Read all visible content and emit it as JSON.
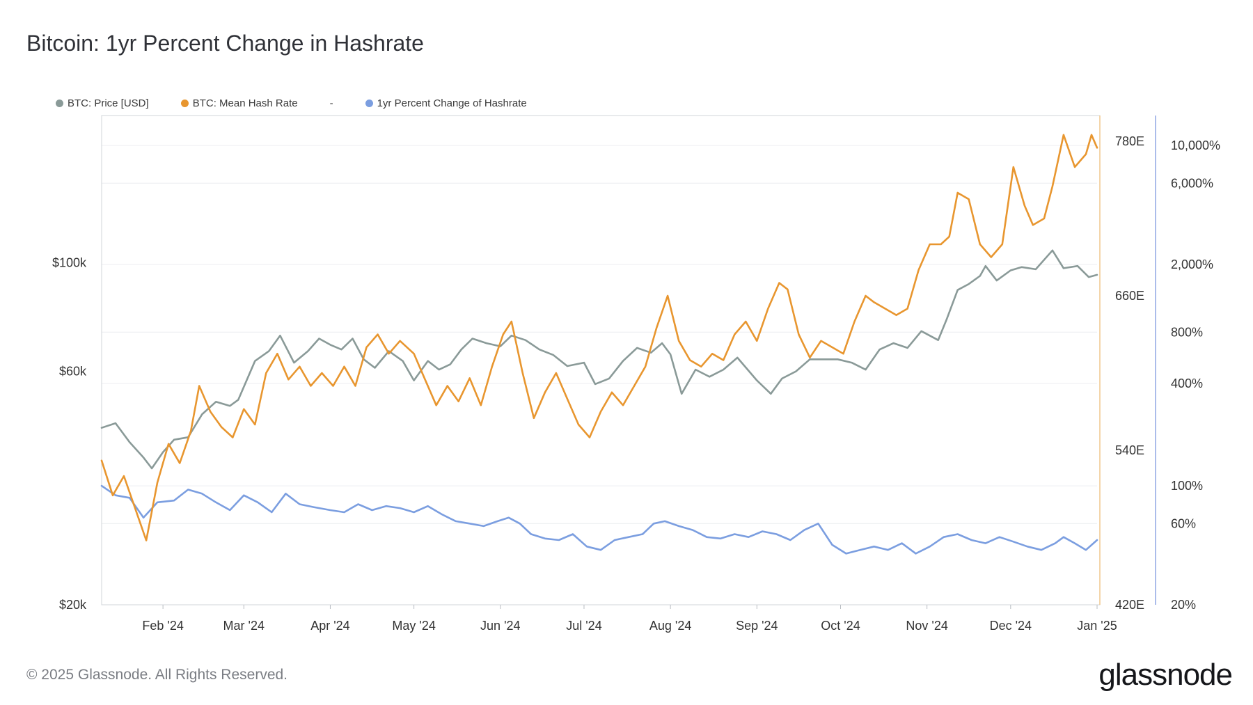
{
  "title": "Bitcoin: 1yr Percent Change in Hashrate",
  "footer": {
    "copyright": "© 2025 Glassnode. All Rights Reserved.",
    "brand": "glassnode"
  },
  "chart_data": {
    "type": "line",
    "title": "Bitcoin: 1yr Percent Change in Hashrate",
    "legend": {
      "placement": "top-left",
      "separator": "-"
    },
    "x_ticks": [
      {
        "date": "2024-02-01",
        "label": "Feb '24"
      },
      {
        "date": "2024-03-01",
        "label": "Mar '24"
      },
      {
        "date": "2024-04-01",
        "label": "Apr '24"
      },
      {
        "date": "2024-05-01",
        "label": "May '24"
      },
      {
        "date": "2024-06-01",
        "label": "Jun '24"
      },
      {
        "date": "2024-07-01",
        "label": "Jul '24"
      },
      {
        "date": "2024-08-01",
        "label": "Aug '24"
      },
      {
        "date": "2024-09-01",
        "label": "Sep '24"
      },
      {
        "date": "2024-10-01",
        "label": "Oct '24"
      },
      {
        "date": "2024-11-01",
        "label": "Nov '24"
      },
      {
        "date": "2024-12-01",
        "label": "Dec '24"
      },
      {
        "date": "2025-01-01",
        "label": "Jan '25"
      }
    ],
    "x_range": [
      "2024-01-10",
      "2025-01-01"
    ],
    "axes": {
      "price": {
        "scale": "log",
        "range": [
          20000,
          200000
        ],
        "ticks": [
          {
            "v": 20000,
            "label": "$20k"
          },
          {
            "v": 60000,
            "label": "$60k"
          },
          {
            "v": 100000,
            "label": "$100k"
          }
        ]
      },
      "hashrate": {
        "scale": "linear",
        "range": [
          420,
          800
        ],
        "ticks": [
          {
            "v": 420,
            "label": "420E"
          },
          {
            "v": 540,
            "label": "540E"
          },
          {
            "v": 660,
            "label": "660E"
          },
          {
            "v": 780,
            "label": "780E"
          }
        ]
      },
      "pct_change": {
        "scale": "log",
        "range": [
          20,
          15000
        ],
        "ticks": [
          {
            "v": 20,
            "label": "20%"
          },
          {
            "v": 60,
            "label": "60%"
          },
          {
            "v": 100,
            "label": "100%"
          },
          {
            "v": 400,
            "label": "400%"
          },
          {
            "v": 800,
            "label": "800%"
          },
          {
            "v": 2000,
            "label": "2,000%"
          },
          {
            "v": 6000,
            "label": "6,000%"
          },
          {
            "v": 10000,
            "label": "10,000%"
          }
        ]
      }
    },
    "grid": true,
    "series": [
      {
        "name": "BTC: Price [USD]",
        "color": "#8a9a98",
        "axis": "price",
        "points": [
          [
            "2024-01-10",
            46000
          ],
          [
            "2024-01-15",
            47000
          ],
          [
            "2024-01-20",
            43000
          ],
          [
            "2024-01-25",
            40000
          ],
          [
            "2024-01-28",
            38000
          ],
          [
            "2024-02-01",
            41000
          ],
          [
            "2024-02-05",
            43500
          ],
          [
            "2024-02-10",
            44000
          ],
          [
            "2024-02-15",
            49000
          ],
          [
            "2024-02-20",
            52000
          ],
          [
            "2024-02-25",
            51000
          ],
          [
            "2024-02-28",
            52500
          ],
          [
            "2024-03-05",
            63000
          ],
          [
            "2024-03-10",
            66000
          ],
          [
            "2024-03-14",
            71000
          ],
          [
            "2024-03-19",
            62500
          ],
          [
            "2024-03-24",
            66000
          ],
          [
            "2024-03-28",
            70000
          ],
          [
            "2024-04-01",
            68000
          ],
          [
            "2024-04-05",
            66500
          ],
          [
            "2024-04-09",
            70000
          ],
          [
            "2024-04-13",
            63500
          ],
          [
            "2024-04-17",
            61000
          ],
          [
            "2024-04-22",
            66000
          ],
          [
            "2024-04-27",
            63000
          ],
          [
            "2024-05-01",
            57500
          ],
          [
            "2024-05-06",
            63000
          ],
          [
            "2024-05-10",
            60500
          ],
          [
            "2024-05-14",
            62000
          ],
          [
            "2024-05-18",
            66500
          ],
          [
            "2024-05-22",
            70000
          ],
          [
            "2024-05-27",
            68500
          ],
          [
            "2024-06-01",
            67500
          ],
          [
            "2024-06-05",
            71000
          ],
          [
            "2024-06-10",
            69500
          ],
          [
            "2024-06-15",
            66500
          ],
          [
            "2024-06-20",
            64800
          ],
          [
            "2024-06-25",
            61500
          ],
          [
            "2024-07-01",
            62500
          ],
          [
            "2024-07-05",
            56500
          ],
          [
            "2024-07-10",
            58000
          ],
          [
            "2024-07-15",
            63000
          ],
          [
            "2024-07-20",
            67000
          ],
          [
            "2024-07-25",
            65500
          ],
          [
            "2024-07-29",
            68500
          ],
          [
            "2024-08-01",
            65000
          ],
          [
            "2024-08-05",
            54000
          ],
          [
            "2024-08-10",
            60500
          ],
          [
            "2024-08-15",
            58500
          ],
          [
            "2024-08-20",
            60500
          ],
          [
            "2024-08-25",
            64000
          ],
          [
            "2024-09-01",
            57500
          ],
          [
            "2024-09-06",
            54000
          ],
          [
            "2024-09-10",
            58000
          ],
          [
            "2024-09-15",
            60000
          ],
          [
            "2024-09-20",
            63500
          ],
          [
            "2024-09-25",
            63500
          ],
          [
            "2024-09-30",
            63500
          ],
          [
            "2024-10-05",
            62500
          ],
          [
            "2024-10-10",
            60500
          ],
          [
            "2024-10-15",
            66500
          ],
          [
            "2024-10-20",
            68500
          ],
          [
            "2024-10-25",
            67000
          ],
          [
            "2024-10-30",
            72500
          ],
          [
            "2024-11-05",
            69500
          ],
          [
            "2024-11-08",
            76500
          ],
          [
            "2024-11-12",
            88000
          ],
          [
            "2024-11-16",
            90500
          ],
          [
            "2024-11-20",
            94000
          ],
          [
            "2024-11-22",
            98500
          ],
          [
            "2024-11-26",
            92000
          ],
          [
            "2024-12-01",
            96500
          ],
          [
            "2024-12-05",
            98000
          ],
          [
            "2024-12-10",
            97000
          ],
          [
            "2024-12-16",
            106000
          ],
          [
            "2024-12-20",
            97500
          ],
          [
            "2024-12-25",
            98500
          ],
          [
            "2024-12-29",
            93500
          ],
          [
            "2025-01-01",
            94500
          ]
        ]
      },
      {
        "name": "BTC: Mean Hash Rate",
        "color": "#e8962f",
        "axis": "hashrate",
        "points": [
          [
            "2024-01-10",
            532
          ],
          [
            "2024-01-14",
            505
          ],
          [
            "2024-01-18",
            520
          ],
          [
            "2024-01-22",
            495
          ],
          [
            "2024-01-26",
            470
          ],
          [
            "2024-01-30",
            515
          ],
          [
            "2024-02-03",
            545
          ],
          [
            "2024-02-07",
            530
          ],
          [
            "2024-02-11",
            555
          ],
          [
            "2024-02-14",
            590
          ],
          [
            "2024-02-18",
            570
          ],
          [
            "2024-02-22",
            558
          ],
          [
            "2024-02-26",
            550
          ],
          [
            "2024-03-01",
            572
          ],
          [
            "2024-03-05",
            560
          ],
          [
            "2024-03-09",
            600
          ],
          [
            "2024-03-13",
            615
          ],
          [
            "2024-03-17",
            595
          ],
          [
            "2024-03-21",
            605
          ],
          [
            "2024-03-25",
            590
          ],
          [
            "2024-03-29",
            600
          ],
          [
            "2024-04-02",
            590
          ],
          [
            "2024-04-06",
            605
          ],
          [
            "2024-04-10",
            590
          ],
          [
            "2024-04-14",
            620
          ],
          [
            "2024-04-18",
            630
          ],
          [
            "2024-04-22",
            615
          ],
          [
            "2024-04-26",
            625
          ],
          [
            "2024-05-01",
            615
          ],
          [
            "2024-05-05",
            595
          ],
          [
            "2024-05-09",
            575
          ],
          [
            "2024-05-13",
            590
          ],
          [
            "2024-05-17",
            578
          ],
          [
            "2024-05-21",
            596
          ],
          [
            "2024-05-25",
            575
          ],
          [
            "2024-05-29",
            605
          ],
          [
            "2024-06-02",
            630
          ],
          [
            "2024-06-05",
            640
          ],
          [
            "2024-06-09",
            600
          ],
          [
            "2024-06-13",
            565
          ],
          [
            "2024-06-17",
            585
          ],
          [
            "2024-06-21",
            600
          ],
          [
            "2024-06-25",
            580
          ],
          [
            "2024-06-29",
            560
          ],
          [
            "2024-07-03",
            550
          ],
          [
            "2024-07-07",
            570
          ],
          [
            "2024-07-11",
            585
          ],
          [
            "2024-07-15",
            575
          ],
          [
            "2024-07-19",
            590
          ],
          [
            "2024-07-23",
            605
          ],
          [
            "2024-07-27",
            635
          ],
          [
            "2024-07-31",
            660
          ],
          [
            "2024-08-04",
            625
          ],
          [
            "2024-08-08",
            610
          ],
          [
            "2024-08-12",
            605
          ],
          [
            "2024-08-16",
            615
          ],
          [
            "2024-08-20",
            610
          ],
          [
            "2024-08-24",
            630
          ],
          [
            "2024-08-28",
            640
          ],
          [
            "2024-09-01",
            625
          ],
          [
            "2024-09-05",
            650
          ],
          [
            "2024-09-09",
            670
          ],
          [
            "2024-09-12",
            665
          ],
          [
            "2024-09-16",
            630
          ],
          [
            "2024-09-20",
            612
          ],
          [
            "2024-09-24",
            625
          ],
          [
            "2024-09-28",
            620
          ],
          [
            "2024-10-02",
            615
          ],
          [
            "2024-10-06",
            640
          ],
          [
            "2024-10-10",
            660
          ],
          [
            "2024-10-13",
            655
          ],
          [
            "2024-10-17",
            650
          ],
          [
            "2024-10-21",
            645
          ],
          [
            "2024-10-25",
            650
          ],
          [
            "2024-10-29",
            680
          ],
          [
            "2024-11-02",
            700
          ],
          [
            "2024-11-06",
            700
          ],
          [
            "2024-11-09",
            706
          ],
          [
            "2024-11-12",
            740
          ],
          [
            "2024-11-16",
            735
          ],
          [
            "2024-11-20",
            700
          ],
          [
            "2024-11-24",
            690
          ],
          [
            "2024-11-28",
            700
          ],
          [
            "2024-12-02",
            760
          ],
          [
            "2024-12-06",
            730
          ],
          [
            "2024-12-09",
            715
          ],
          [
            "2024-12-13",
            720
          ],
          [
            "2024-12-16",
            745
          ],
          [
            "2024-12-20",
            785
          ],
          [
            "2024-12-24",
            760
          ],
          [
            "2024-12-28",
            770
          ],
          [
            "2024-12-30",
            785
          ],
          [
            "2025-01-01",
            775
          ]
        ]
      },
      {
        "name": "1yr Percent Change of Hashrate",
        "color": "#7b9ee0",
        "axis": "pct_change",
        "points": [
          [
            "2024-01-10",
            100
          ],
          [
            "2024-01-15",
            88
          ],
          [
            "2024-01-20",
            85
          ],
          [
            "2024-01-25",
            65
          ],
          [
            "2024-01-30",
            80
          ],
          [
            "2024-02-05",
            82
          ],
          [
            "2024-02-10",
            95
          ],
          [
            "2024-02-15",
            90
          ],
          [
            "2024-02-20",
            80
          ],
          [
            "2024-02-25",
            72
          ],
          [
            "2024-03-01",
            88
          ],
          [
            "2024-03-06",
            80
          ],
          [
            "2024-03-11",
            70
          ],
          [
            "2024-03-16",
            90
          ],
          [
            "2024-03-21",
            78
          ],
          [
            "2024-03-26",
            75
          ],
          [
            "2024-04-01",
            72
          ],
          [
            "2024-04-06",
            70
          ],
          [
            "2024-04-11",
            78
          ],
          [
            "2024-04-16",
            72
          ],
          [
            "2024-04-21",
            76
          ],
          [
            "2024-04-26",
            74
          ],
          [
            "2024-05-01",
            70
          ],
          [
            "2024-05-06",
            76
          ],
          [
            "2024-05-11",
            68
          ],
          [
            "2024-05-16",
            62
          ],
          [
            "2024-05-21",
            60
          ],
          [
            "2024-05-26",
            58
          ],
          [
            "2024-05-31",
            62
          ],
          [
            "2024-06-04",
            65
          ],
          [
            "2024-06-08",
            60
          ],
          [
            "2024-06-12",
            52
          ],
          [
            "2024-06-17",
            49
          ],
          [
            "2024-06-22",
            48
          ],
          [
            "2024-06-27",
            52
          ],
          [
            "2024-07-02",
            44
          ],
          [
            "2024-07-07",
            42
          ],
          [
            "2024-07-12",
            48
          ],
          [
            "2024-07-17",
            50
          ],
          [
            "2024-07-22",
            52
          ],
          [
            "2024-07-26",
            60
          ],
          [
            "2024-07-30",
            62
          ],
          [
            "2024-08-04",
            58
          ],
          [
            "2024-08-09",
            55
          ],
          [
            "2024-08-14",
            50
          ],
          [
            "2024-08-19",
            49
          ],
          [
            "2024-08-24",
            52
          ],
          [
            "2024-08-29",
            50
          ],
          [
            "2024-09-03",
            54
          ],
          [
            "2024-09-08",
            52
          ],
          [
            "2024-09-13",
            48
          ],
          [
            "2024-09-18",
            55
          ],
          [
            "2024-09-23",
            60
          ],
          [
            "2024-09-28",
            45
          ],
          [
            "2024-10-03",
            40
          ],
          [
            "2024-10-08",
            42
          ],
          [
            "2024-10-13",
            44
          ],
          [
            "2024-10-18",
            42
          ],
          [
            "2024-10-23",
            46
          ],
          [
            "2024-10-28",
            40
          ],
          [
            "2024-11-02",
            44
          ],
          [
            "2024-11-07",
            50
          ],
          [
            "2024-11-12",
            52
          ],
          [
            "2024-11-17",
            48
          ],
          [
            "2024-11-22",
            46
          ],
          [
            "2024-11-27",
            50
          ],
          [
            "2024-12-02",
            47
          ],
          [
            "2024-12-07",
            44
          ],
          [
            "2024-12-12",
            42
          ],
          [
            "2024-12-17",
            46
          ],
          [
            "2024-12-20",
            50
          ],
          [
            "2024-12-24",
            46
          ],
          [
            "2024-12-28",
            42
          ],
          [
            "2025-01-01",
            48
          ]
        ]
      }
    ]
  }
}
